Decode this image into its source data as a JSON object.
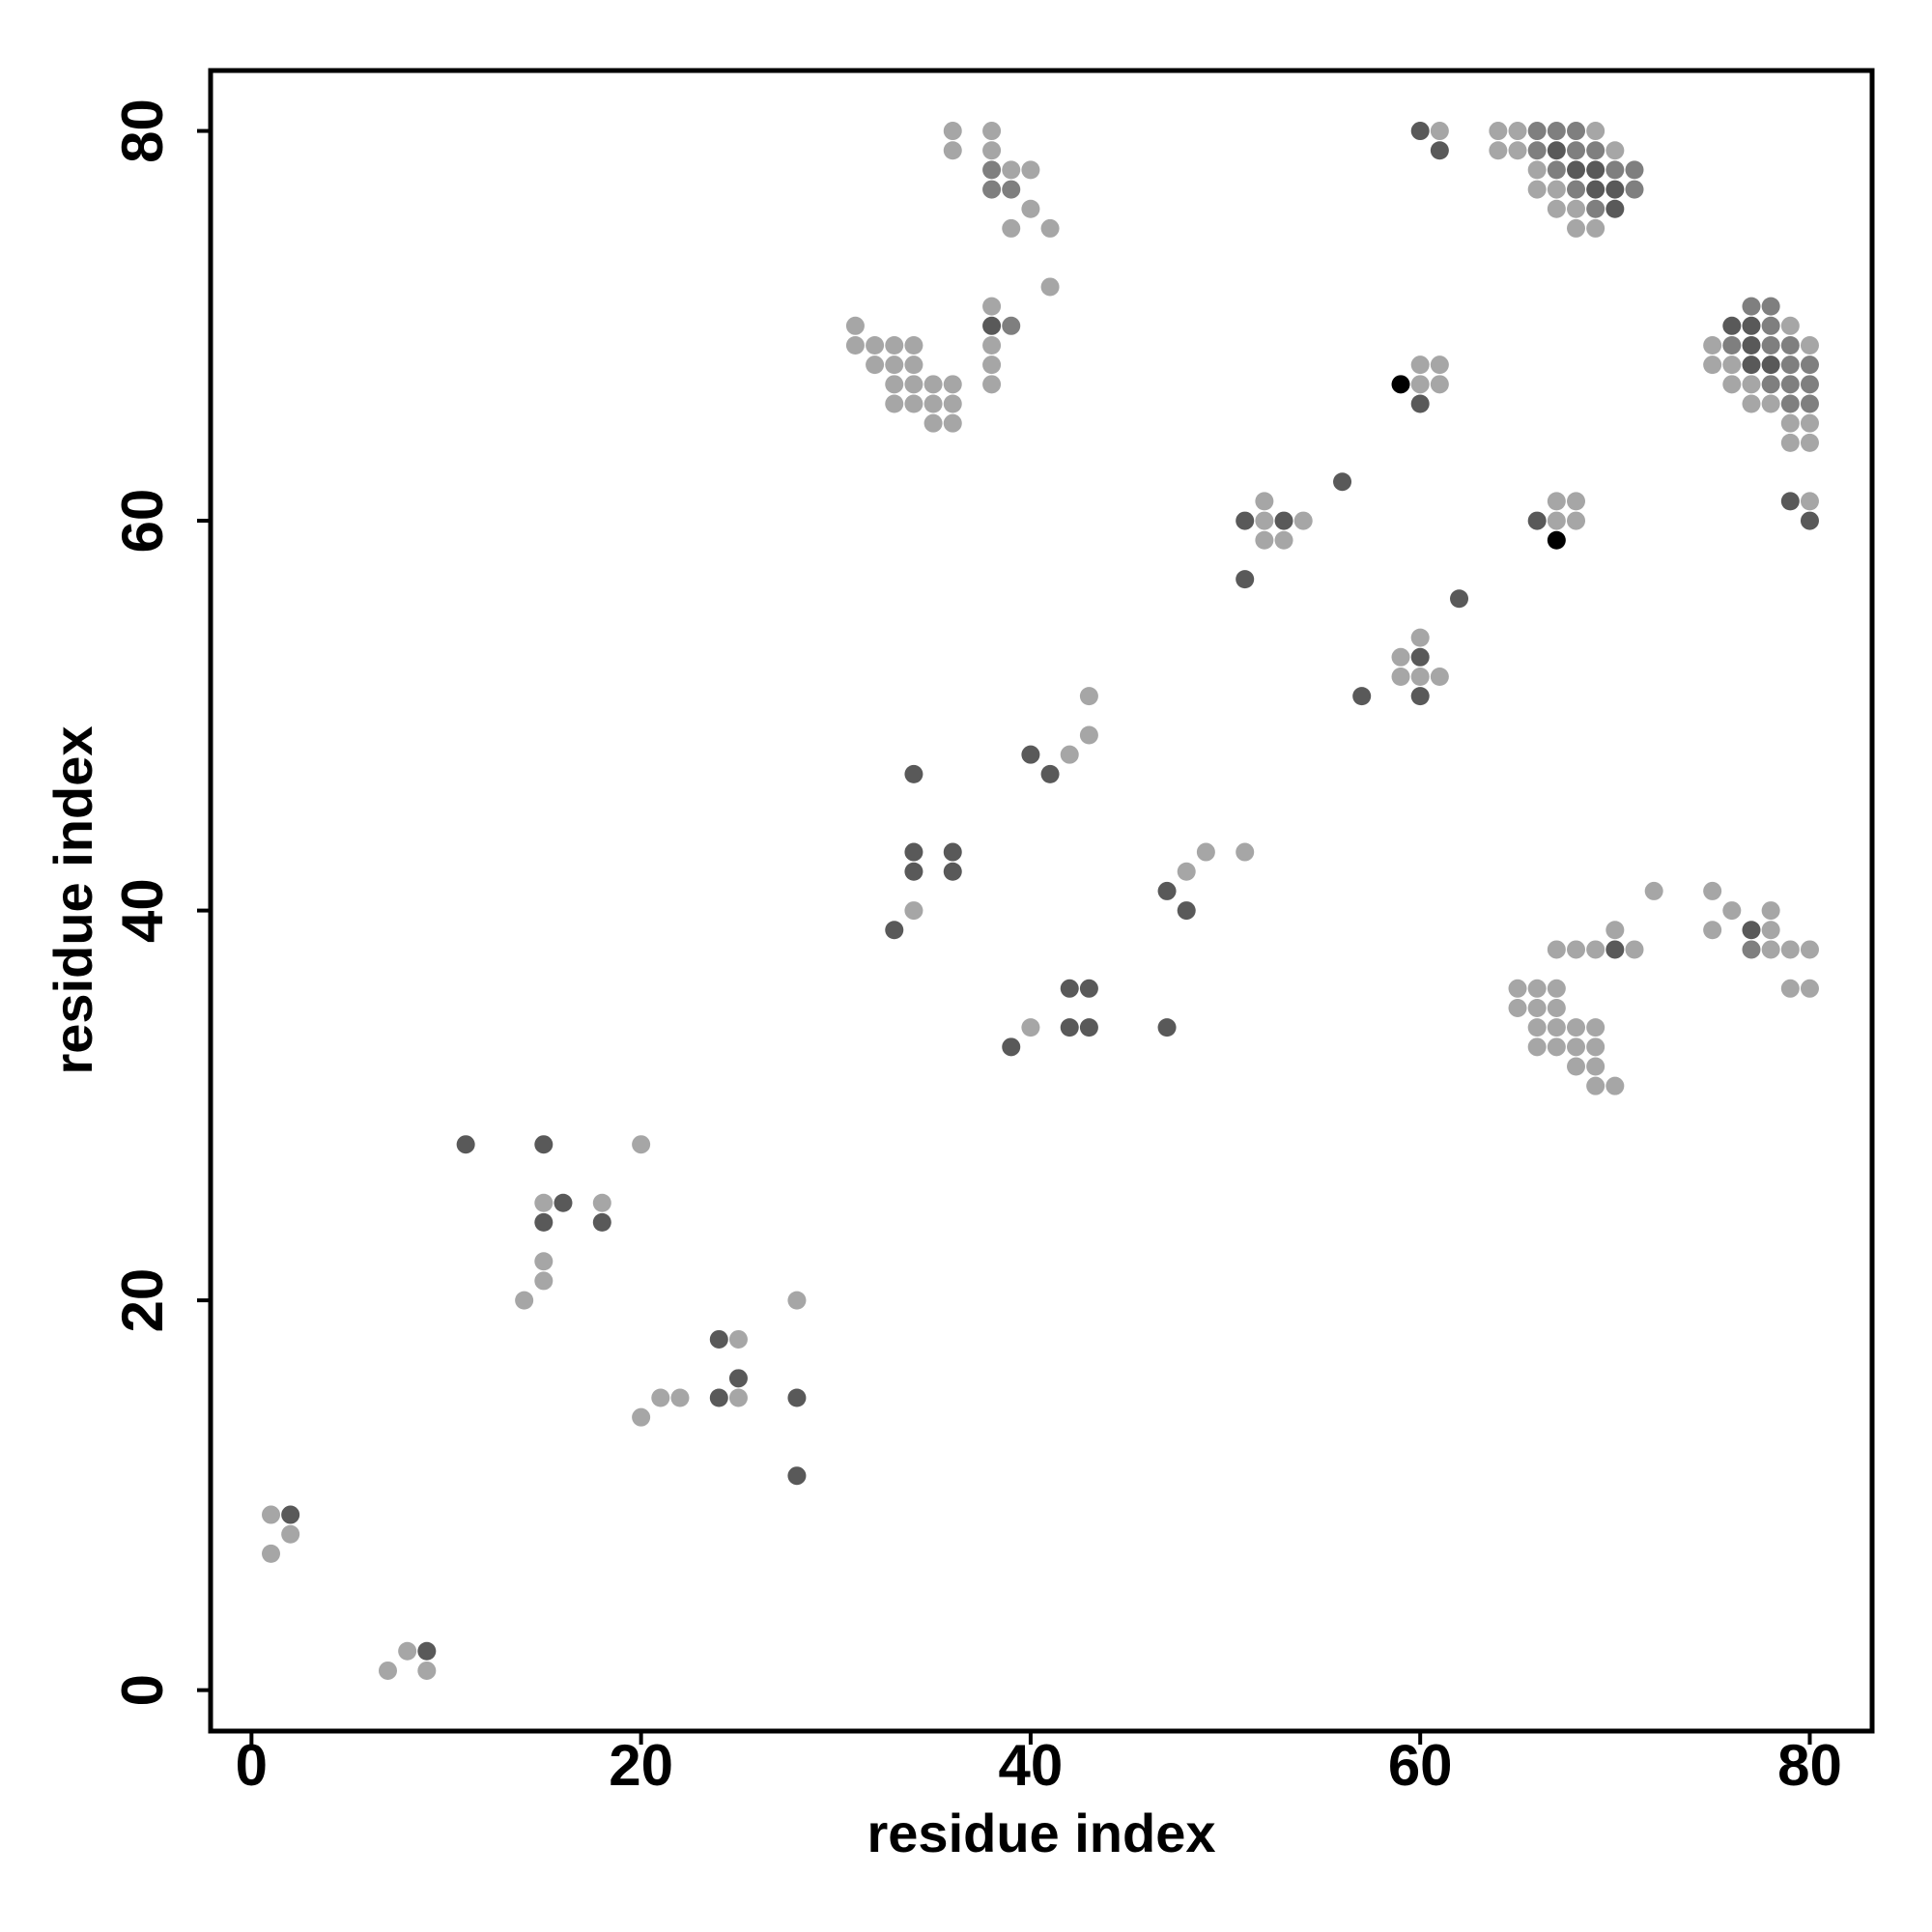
{
  "chart_data": {
    "type": "scatter",
    "xlabel": "residue index",
    "ylabel": "residue index",
    "xlim": [
      -2.1,
      83.2
    ],
    "ylim": [
      -2.1,
      83.1
    ],
    "xticks": [
      0,
      20,
      40,
      60,
      80
    ],
    "yticks": [
      0,
      20,
      40,
      60,
      80
    ],
    "series": [
      {
        "color": "#a6a6a6",
        "x": [
          1,
          2,
          1,
          8,
          7,
          9,
          20,
          15,
          18,
          15,
          15,
          14,
          28,
          25,
          21,
          22,
          25,
          20,
          34,
          43,
          43,
          42,
          49,
          51,
          48,
          40,
          52,
          52,
          54,
          52,
          53,
          60,
          59,
          59,
          60,
          61,
          61,
          60,
          61,
          60,
          61,
          67,
          68,
          67,
          68,
          80,
          36,
          38,
          36,
          38,
          39,
          40,
          40,
          39,
          41,
          41,
          38,
          31,
          31,
          32,
          33,
          34,
          38,
          32,
          33,
          34,
          38,
          33,
          34,
          35,
          36,
          38,
          33,
          34,
          35,
          36,
          35,
          36,
          64,
          65,
          69,
          64,
          65,
          70,
          66,
          66,
          67,
          67,
          68,
          68,
          69,
          79,
          75,
          80,
          75,
          76,
          76,
          77,
          77,
          78,
          79,
          80,
          79,
          80,
          72,
          75,
          76,
          78,
          75,
          78,
          70,
          67,
          68,
          69,
          71,
          78,
          79,
          80,
          65,
          66,
          67,
          79,
          80,
          65,
          66,
          67,
          66,
          67,
          68,
          69,
          66,
          67,
          68,
          69,
          68,
          69,
          69,
          70
        ],
        "values": [
          9,
          8,
          7,
          2,
          1,
          1,
          28,
          25,
          25,
          22,
          21,
          20,
          20,
          18,
          15,
          15,
          15,
          14,
          40,
          51,
          49,
          48,
          43,
          43,
          42,
          34,
          61,
          60,
          60,
          59,
          59,
          54,
          53,
          52,
          52,
          52,
          80,
          68,
          68,
          67,
          67,
          61,
          61,
          60,
          60,
          61,
          80,
          80,
          79,
          79,
          78,
          78,
          76,
          75,
          75,
          72,
          71,
          70,
          69,
          69,
          69,
          69,
          69,
          68,
          68,
          68,
          68,
          67,
          67,
          67,
          67,
          67,
          66,
          66,
          66,
          66,
          65,
          65,
          80,
          80,
          80,
          79,
          79,
          79,
          78,
          77,
          77,
          76,
          76,
          75,
          75,
          70,
          69,
          69,
          68,
          68,
          67,
          67,
          66,
          66,
          65,
          65,
          64,
          64,
          41,
          41,
          40,
          40,
          39,
          39,
          39,
          38,
          38,
          38,
          38,
          38,
          38,
          38,
          36,
          36,
          36,
          36,
          36,
          35,
          35,
          35,
          34,
          34,
          34,
          34,
          33,
          33,
          33,
          33,
          32,
          32,
          31,
          31
        ]
      },
      {
        "color": "#7f7f7f",
        "x": [
          38,
          38,
          39,
          39,
          66,
          67,
          68,
          66,
          68,
          69,
          67,
          70,
          71,
          68,
          71,
          69,
          77,
          78,
          78,
          76,
          78,
          79,
          79,
          80,
          78,
          79,
          80,
          79,
          80,
          77
        ],
        "values": [
          78,
          77,
          77,
          70,
          80,
          80,
          80,
          79,
          79,
          79,
          78,
          78,
          78,
          77,
          77,
          76,
          71,
          71,
          70,
          69,
          69,
          69,
          68,
          68,
          67,
          67,
          67,
          66,
          66,
          38
        ]
      },
      {
        "color": "#595959",
        "x": [
          2,
          9,
          11,
          15,
          16,
          15,
          18,
          24,
          25,
          24,
          28,
          28,
          34,
          34,
          36,
          34,
          36,
          33,
          40,
          41,
          47,
          48,
          42,
          43,
          42,
          43,
          47,
          39,
          51,
          53,
          51,
          56,
          62,
          60,
          57,
          60,
          60,
          61,
          60,
          66,
          79,
          80,
          38,
          67,
          68,
          69,
          69,
          70,
          70,
          76,
          77,
          77,
          77,
          78,
          77,
          70
        ],
        "values": [
          9,
          2,
          28,
          28,
          25,
          24,
          24,
          18,
          16,
          15,
          15,
          11,
          47,
          43,
          43,
          42,
          42,
          39,
          48,
          47,
          41,
          40,
          36,
          36,
          34,
          34,
          34,
          33,
          60,
          60,
          57,
          62,
          56,
          53,
          51,
          51,
          80,
          79,
          66,
          60,
          61,
          60,
          70,
          79,
          78,
          78,
          77,
          77,
          76,
          70,
          70,
          69,
          68,
          68,
          39,
          38
        ]
      },
      {
        "color": "#000000",
        "x": [
          59,
          67
        ],
        "values": [
          67,
          59
        ]
      }
    ]
  }
}
